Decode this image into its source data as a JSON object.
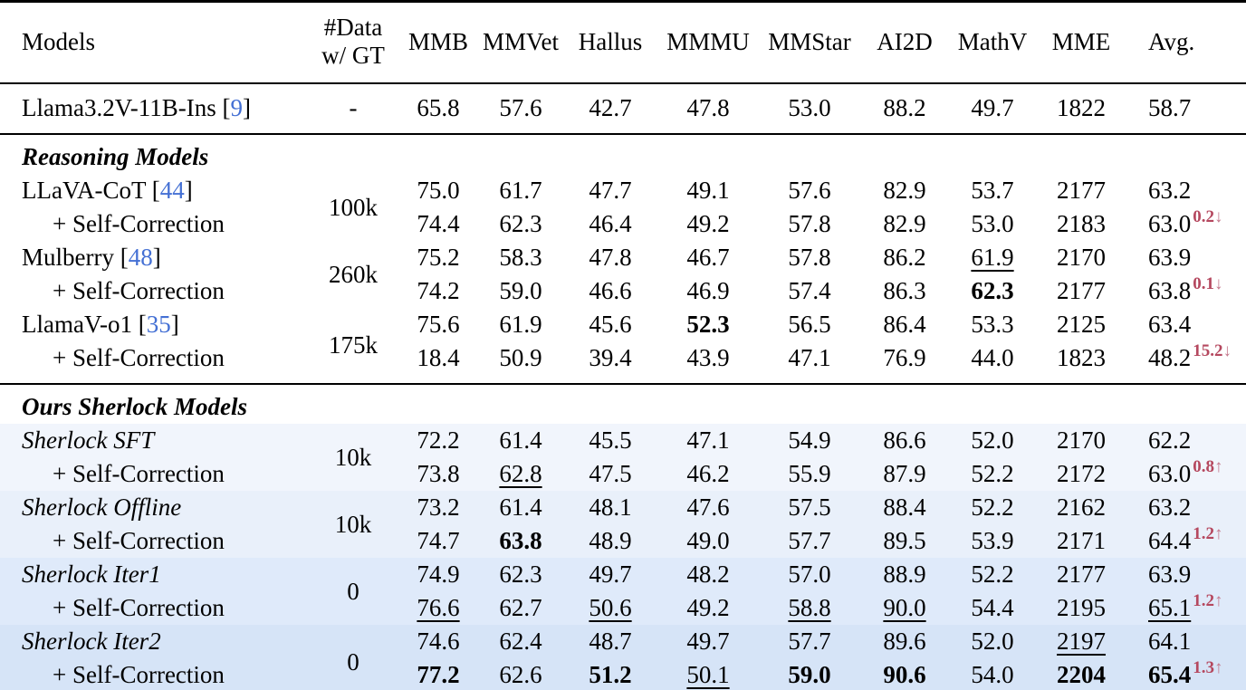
{
  "colors": {
    "citation_blue": "#4470d4",
    "delta_red": "#b5485f",
    "delta_arrow": "#c4788c",
    "bg_sft": "#f1f5fc",
    "bg_offline": "#e9f0fa",
    "bg_iter1": "#dfeafa",
    "bg_iter2": "#d6e4f7"
  },
  "header": {
    "models": "Models",
    "data_gt": [
      "#Data",
      "w/ GT"
    ],
    "metrics": [
      "MMB",
      "MMVet",
      "Hallus",
      "MMMU",
      "MMStar",
      "AI2D",
      "MathV",
      "MME",
      "Avg."
    ]
  },
  "rows": [
    {
      "type": "model",
      "name": "Llama3.2V-11B-Ins",
      "cite": "9",
      "gt": "-",
      "gtspan": 1,
      "cls": "pad-top rule-after",
      "cells": [
        {
          "v": "65.8"
        },
        {
          "v": "57.6"
        },
        {
          "v": "42.7"
        },
        {
          "v": "47.8"
        },
        {
          "v": "53.0"
        },
        {
          "v": "88.2"
        },
        {
          "v": "49.7"
        },
        {
          "v": "1822"
        },
        {
          "v": "58.7"
        }
      ]
    },
    {
      "type": "section",
      "name": "Reasoning Models"
    },
    {
      "type": "model",
      "name": "LLaVA-CoT",
      "cite": "44",
      "gt": "100k",
      "gtspan": 2,
      "cells": [
        {
          "v": "75.0"
        },
        {
          "v": "61.7"
        },
        {
          "v": "47.7"
        },
        {
          "v": "49.1"
        },
        {
          "v": "57.6"
        },
        {
          "v": "82.9"
        },
        {
          "v": "53.7"
        },
        {
          "v": "2177"
        },
        {
          "v": "63.2"
        }
      ]
    },
    {
      "type": "model",
      "name": "+ Self-Correction",
      "indent": true,
      "cells": [
        {
          "v": "74.4"
        },
        {
          "v": "62.3"
        },
        {
          "v": "46.4"
        },
        {
          "v": "49.2"
        },
        {
          "v": "57.8"
        },
        {
          "v": "82.9"
        },
        {
          "v": "53.0"
        },
        {
          "v": "2183"
        },
        {
          "v": "63.0",
          "sup": "0.2",
          "arrow": "↓"
        }
      ]
    },
    {
      "type": "model",
      "name": "Mulberry",
      "cite": "48",
      "gt": "260k",
      "gtspan": 2,
      "cells": [
        {
          "v": "75.2"
        },
        {
          "v": "58.3"
        },
        {
          "v": "47.8"
        },
        {
          "v": "46.7"
        },
        {
          "v": "57.8"
        },
        {
          "v": "86.2"
        },
        {
          "v": "61.9",
          "u": 1
        },
        {
          "v": "2170"
        },
        {
          "v": "63.9"
        }
      ]
    },
    {
      "type": "model",
      "name": "+ Self-Correction",
      "indent": true,
      "cells": [
        {
          "v": "74.2"
        },
        {
          "v": "59.0"
        },
        {
          "v": "46.6"
        },
        {
          "v": "46.9"
        },
        {
          "v": "57.4"
        },
        {
          "v": "86.3"
        },
        {
          "v": "62.3",
          "b": 1
        },
        {
          "v": "2177"
        },
        {
          "v": "63.8",
          "sup": "0.1",
          "arrow": "↓"
        }
      ]
    },
    {
      "type": "model",
      "name": "LlamaV-o1",
      "cite": "35",
      "gt": "175k",
      "gtspan": 2,
      "gtcls": "gt-rule",
      "cells": [
        {
          "v": "75.6"
        },
        {
          "v": "61.9"
        },
        {
          "v": "45.6"
        },
        {
          "v": "52.3",
          "b": 1
        },
        {
          "v": "56.5"
        },
        {
          "v": "86.4"
        },
        {
          "v": "53.3"
        },
        {
          "v": "2125"
        },
        {
          "v": "63.4"
        }
      ]
    },
    {
      "type": "model",
      "name": "+ Self-Correction",
      "indent": true,
      "cls": "rule-after",
      "cells": [
        {
          "v": "18.4"
        },
        {
          "v": "50.9"
        },
        {
          "v": "39.4"
        },
        {
          "v": "43.9"
        },
        {
          "v": "47.1"
        },
        {
          "v": "76.9"
        },
        {
          "v": "44.0"
        },
        {
          "v": "1823"
        },
        {
          "v": "48.2",
          "sup": "15.2",
          "arrow": "↓"
        }
      ]
    },
    {
      "type": "section",
      "name": "Ours Sherlock Models"
    },
    {
      "type": "model",
      "name": "Sherlock SFT",
      "italic": true,
      "bg": "bg_sft",
      "gt": "10k",
      "gtspan": 2,
      "cells": [
        {
          "v": "72.2"
        },
        {
          "v": "61.4"
        },
        {
          "v": "45.5"
        },
        {
          "v": "47.1"
        },
        {
          "v": "54.9"
        },
        {
          "v": "86.6"
        },
        {
          "v": "52.0"
        },
        {
          "v": "2170"
        },
        {
          "v": "62.2"
        }
      ]
    },
    {
      "type": "model",
      "name": "+ Self-Correction",
      "indent": true,
      "bg": "bg_sft",
      "cells": [
        {
          "v": "73.8"
        },
        {
          "v": "62.8",
          "u": 1
        },
        {
          "v": "47.5"
        },
        {
          "v": "46.2"
        },
        {
          "v": "55.9"
        },
        {
          "v": "87.9"
        },
        {
          "v": "52.2"
        },
        {
          "v": "2172"
        },
        {
          "v": "63.0",
          "sup": "0.8",
          "arrow": "↑"
        }
      ]
    },
    {
      "type": "model",
      "name": "Sherlock Offline",
      "italic": true,
      "bg": "bg_offline",
      "gt": "10k",
      "gtspan": 2,
      "cells": [
        {
          "v": "73.2"
        },
        {
          "v": "61.4"
        },
        {
          "v": "48.1"
        },
        {
          "v": "47.6"
        },
        {
          "v": "57.5"
        },
        {
          "v": "88.4"
        },
        {
          "v": "52.2"
        },
        {
          "v": "2162"
        },
        {
          "v": "63.2"
        }
      ]
    },
    {
      "type": "model",
      "name": "+ Self-Correction",
      "indent": true,
      "bg": "bg_offline",
      "cells": [
        {
          "v": "74.7"
        },
        {
          "v": "63.8",
          "b": 1
        },
        {
          "v": "48.9"
        },
        {
          "v": "49.0"
        },
        {
          "v": "57.7"
        },
        {
          "v": "89.5"
        },
        {
          "v": "53.9"
        },
        {
          "v": "2171"
        },
        {
          "v": "64.4",
          "sup": "1.2",
          "arrow": "↑"
        }
      ]
    },
    {
      "type": "model",
      "name": "Sherlock Iter1",
      "italic": true,
      "bg": "bg_iter1",
      "gt": "0",
      "gtspan": 2,
      "cells": [
        {
          "v": "74.9"
        },
        {
          "v": "62.3"
        },
        {
          "v": "49.7"
        },
        {
          "v": "48.2"
        },
        {
          "v": "57.0"
        },
        {
          "v": "88.9"
        },
        {
          "v": "52.2"
        },
        {
          "v": "2177"
        },
        {
          "v": "63.9"
        }
      ]
    },
    {
      "type": "model",
      "name": "+ Self-Correction",
      "indent": true,
      "bg": "bg_iter1",
      "cells": [
        {
          "v": "76.6",
          "u": 1
        },
        {
          "v": "62.7"
        },
        {
          "v": "50.6",
          "u": 1
        },
        {
          "v": "49.2"
        },
        {
          "v": "58.8",
          "u": 1
        },
        {
          "v": "90.0",
          "u": 1
        },
        {
          "v": "54.4"
        },
        {
          "v": "2195"
        },
        {
          "v": "65.1",
          "u": 1,
          "sup": "1.2",
          "arrow": "↑"
        }
      ]
    },
    {
      "type": "model",
      "name": "Sherlock Iter2",
      "italic": true,
      "bg": "bg_iter2",
      "gt": "0",
      "gtspan": 2,
      "cells": [
        {
          "v": "74.6"
        },
        {
          "v": "62.4"
        },
        {
          "v": "48.7"
        },
        {
          "v": "49.7"
        },
        {
          "v": "57.7"
        },
        {
          "v": "89.6"
        },
        {
          "v": "52.0"
        },
        {
          "v": "2197",
          "u": 1
        },
        {
          "v": "64.1"
        }
      ]
    },
    {
      "type": "model",
      "name": "+ Self-Correction",
      "indent": true,
      "bg": "bg_iter2",
      "cls": "last",
      "cells": [
        {
          "v": "77.2",
          "b": 1
        },
        {
          "v": "62.6"
        },
        {
          "v": "51.2",
          "b": 1
        },
        {
          "v": "50.1",
          "u": 1
        },
        {
          "v": "59.0",
          "b": 1
        },
        {
          "v": "90.6",
          "b": 1
        },
        {
          "v": "54.0"
        },
        {
          "v": "2204",
          "b": 1
        },
        {
          "v": "65.4",
          "b": 1,
          "sup": "1.3",
          "arrow": "↑"
        }
      ]
    }
  ]
}
